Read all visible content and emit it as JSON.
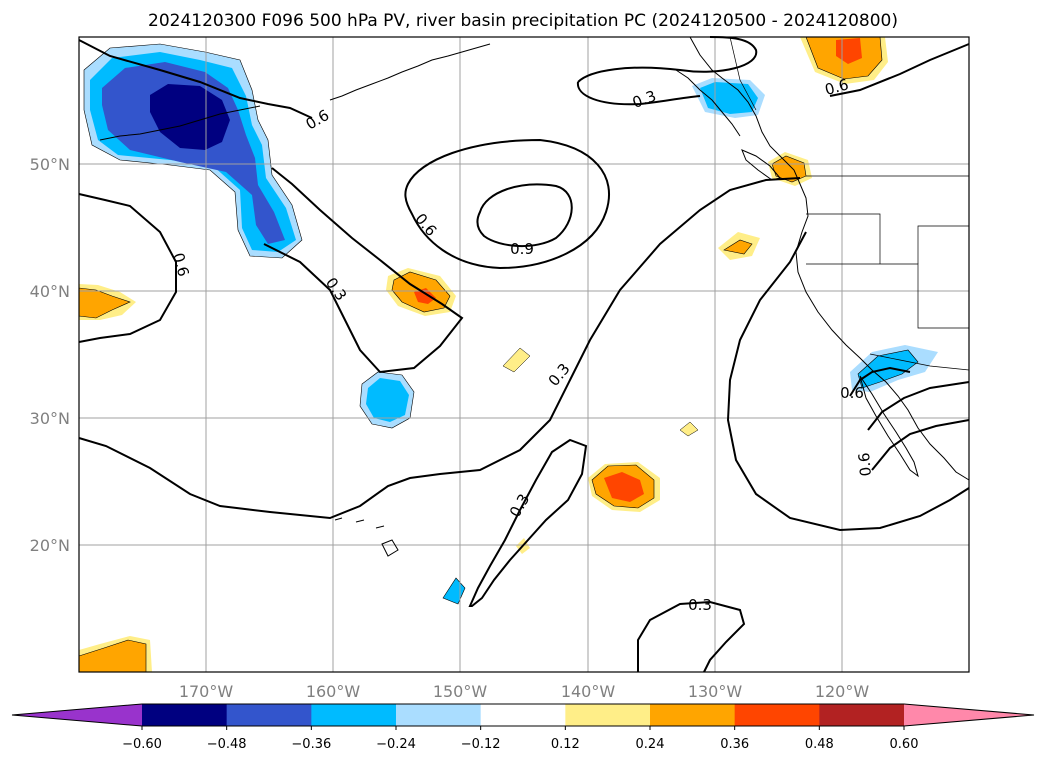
{
  "title": "2024120300 F096 500 hPa PV, river basin precipitation PC (2024120500 - 2024120800)",
  "map": {
    "lon_min": -180,
    "lon_max": -110,
    "lat_min": 10,
    "lat_max": 60,
    "lat_ticks": [
      {
        "lat": 20,
        "label": "20°N"
      },
      {
        "lat": 30,
        "label": "30°N"
      },
      {
        "lat": 40,
        "label": "40°N"
      },
      {
        "lat": 50,
        "label": "50°N"
      }
    ],
    "lon_ticks": [
      {
        "lon": -170,
        "label": "170°W"
      },
      {
        "lon": -160,
        "label": "160°W"
      },
      {
        "lon": -150,
        "label": "150°W"
      },
      {
        "lon": -140,
        "label": "140°W"
      },
      {
        "lon": -130,
        "label": "130°W"
      },
      {
        "lon": -120,
        "label": "120°W"
      }
    ],
    "gridlines": true
  },
  "contour_labels": [
    "0.6",
    "0.6",
    "0.6",
    "0.3",
    "0.6",
    "0.9",
    "0.3",
    "0.3",
    "0.3",
    "0.6",
    "0.3",
    "0.6"
  ],
  "colorbar": {
    "colors": [
      "#9933cc",
      "#000080",
      "#3355cc",
      "#00bbff",
      "#aaddff",
      "#ffffff",
      "#ffee88",
      "#ffa500",
      "#ff4500",
      "#b22222",
      "#ff88aa"
    ],
    "ticks": [
      "−0.60",
      "−0.48",
      "−0.36",
      "−0.24",
      "−0.12",
      "0.12",
      "0.24",
      "0.36",
      "0.48",
      "0.60"
    ]
  },
  "colors": {
    "strong_negative": "#000080",
    "moderate_negative": "#3355cc",
    "negative": "#00bbff",
    "weak_negative": "#aaddff",
    "weak_positive": "#ffee88",
    "positive": "#ffa500",
    "strong_positive": "#ff4500"
  }
}
